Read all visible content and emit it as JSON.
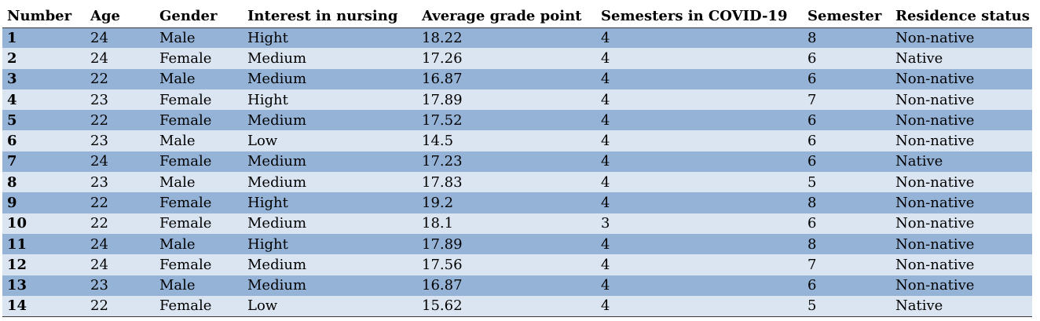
{
  "table": {
    "headers": [
      "Number",
      "Age",
      "Gender",
      "Interest in nursing",
      "Average grade point",
      "Semesters in COVID-19",
      "Semester",
      "Residence status"
    ],
    "rows": [
      [
        "1",
        "24",
        "Male",
        "Hight",
        "18.22",
        "4",
        "8",
        "Non-native"
      ],
      [
        "2",
        "24",
        "Female",
        "Medium",
        "17.26",
        "4",
        "6",
        "Native"
      ],
      [
        "3",
        "22",
        "Male",
        "Medium",
        "16.87",
        "4",
        "6",
        "Non-native"
      ],
      [
        "4",
        "23",
        "Female",
        "Hight",
        "17.89",
        "4",
        "7",
        "Non-native"
      ],
      [
        "5",
        "22",
        "Female",
        "Medium",
        "17.52",
        "4",
        "6",
        "Non-native"
      ],
      [
        "6",
        "23",
        "Male",
        "Low",
        "14.5",
        "4",
        "6",
        "Non-native"
      ],
      [
        "7",
        "24",
        "Female",
        "Medium",
        "17.23",
        "4",
        "6",
        "Native"
      ],
      [
        "8",
        "23",
        "Male",
        "Medium",
        "17.83",
        "4",
        "5",
        "Non-native"
      ],
      [
        "9",
        "22",
        "Female",
        "Hight",
        "19.2",
        "4",
        "8",
        "Non-native"
      ],
      [
        "10",
        "22",
        "Female",
        "Medium",
        "18.1",
        "3",
        "6",
        "Non-native"
      ],
      [
        "11",
        "24",
        "Male",
        "Hight",
        "17.89",
        "4",
        "8",
        "Non-native"
      ],
      [
        "12",
        "24",
        "Female",
        "Medium",
        "17.56",
        "4",
        "7",
        "Non-native"
      ],
      [
        "13",
        "23",
        "Male",
        "Medium",
        "16.87",
        "4",
        "6",
        "Non-native"
      ],
      [
        "14",
        "22",
        "Female",
        "Low",
        "15.62",
        "4",
        "5",
        "Native"
      ]
    ]
  },
  "colors": {
    "row_dark": "#95b3d7",
    "row_light": "#dbe5f1",
    "rule": "#3a3a3a"
  }
}
